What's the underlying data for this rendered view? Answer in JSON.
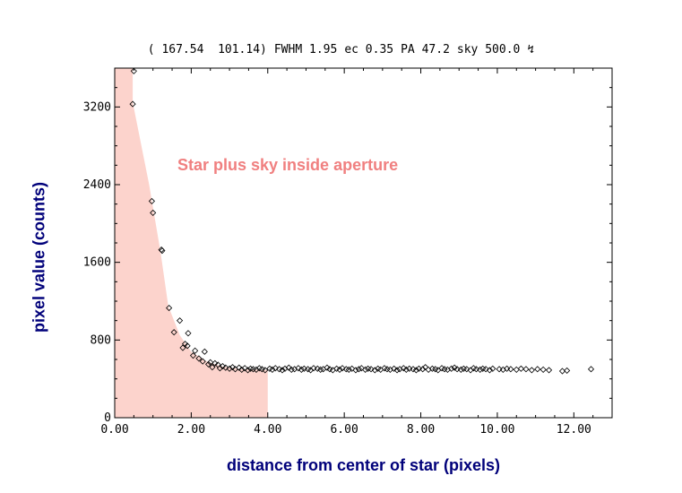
{
  "header": {
    "coords": "( 167.54  101.14)",
    "fwhm": "FWHM 1.95",
    "ec": "ec 0.35",
    "pa": "PA 47.2",
    "sky": "sky 500.0",
    "corner_glyph": "↯"
  },
  "chart_data": {
    "type": "scatter",
    "title": "",
    "xlabel": "distance from center of star (pixels)",
    "ylabel": "pixel value (counts)",
    "xlim": [
      0,
      13
    ],
    "ylim": [
      0,
      3600
    ],
    "xticks": [
      0,
      2,
      4,
      6,
      8,
      10,
      12
    ],
    "xtick_labels": [
      "0.00",
      "2.00",
      "4.00",
      "6.00",
      "8.00",
      "10.00",
      "12.00"
    ],
    "yticks": [
      0,
      800,
      1600,
      2400,
      3200
    ],
    "ytick_labels": [
      "0",
      "800",
      "1600",
      "2400",
      "3200"
    ],
    "annotation": "Star plus sky inside aperture",
    "aperture_radius": 4.0,
    "shaded_profile": [
      [
        0,
        3600
      ],
      [
        0.47,
        3600
      ],
      [
        0.47,
        3250
      ],
      [
        0.9,
        2400
      ],
      [
        1.2,
        1700
      ],
      [
        1.4,
        1150
      ],
      [
        1.7,
        850
      ],
      [
        2.0,
        680
      ],
      [
        2.4,
        580
      ],
      [
        2.8,
        530
      ],
      [
        3.3,
        500
      ],
      [
        4.0,
        490
      ]
    ],
    "colors": {
      "shade": "#fcd3cc",
      "marker": "#000000",
      "axis_label": "#00007a",
      "annotation": "#f08080"
    },
    "sky_level": 500,
    "points": [
      [
        0.5,
        3570
      ],
      [
        0.47,
        3230
      ],
      [
        0.97,
        2230
      ],
      [
        1.0,
        2110
      ],
      [
        1.22,
        1730
      ],
      [
        1.24,
        1720
      ],
      [
        1.42,
        1130
      ],
      [
        1.7,
        1000
      ],
      [
        1.55,
        880
      ],
      [
        1.92,
        870
      ],
      [
        1.84,
        760
      ],
      [
        1.78,
        720
      ],
      [
        1.9,
        740
      ],
      [
        2.1,
        690
      ],
      [
        2.05,
        640
      ],
      [
        2.2,
        610
      ],
      [
        2.35,
        680
      ],
      [
        2.3,
        580
      ],
      [
        2.45,
        550
      ],
      [
        2.5,
        570
      ],
      [
        2.55,
        520
      ],
      [
        2.62,
        560
      ],
      [
        2.7,
        545
      ],
      [
        2.75,
        510
      ],
      [
        2.82,
        530
      ],
      [
        2.9,
        515
      ],
      [
        3.0,
        505
      ],
      [
        3.08,
        520
      ],
      [
        3.15,
        500
      ],
      [
        3.25,
        515
      ],
      [
        3.32,
        495
      ],
      [
        3.4,
        510
      ],
      [
        3.48,
        490
      ],
      [
        3.55,
        505
      ],
      [
        3.62,
        500
      ],
      [
        3.7,
        495
      ],
      [
        3.78,
        510
      ],
      [
        3.85,
        500
      ],
      [
        3.93,
        490
      ],
      [
        4.05,
        505
      ],
      [
        4.12,
        495
      ],
      [
        4.2,
        510
      ],
      [
        4.3,
        500
      ],
      [
        4.38,
        490
      ],
      [
        4.45,
        505
      ],
      [
        4.55,
        515
      ],
      [
        4.62,
        495
      ],
      [
        4.7,
        500
      ],
      [
        4.8,
        510
      ],
      [
        4.88,
        495
      ],
      [
        4.95,
        505
      ],
      [
        5.05,
        500
      ],
      [
        5.12,
        490
      ],
      [
        5.2,
        510
      ],
      [
        5.3,
        505
      ],
      [
        5.38,
        495
      ],
      [
        5.45,
        500
      ],
      [
        5.55,
        515
      ],
      [
        5.62,
        500
      ],
      [
        5.7,
        490
      ],
      [
        5.8,
        505
      ],
      [
        5.88,
        495
      ],
      [
        5.95,
        510
      ],
      [
        6.05,
        500
      ],
      [
        6.12,
        495
      ],
      [
        6.2,
        505
      ],
      [
        6.3,
        490
      ],
      [
        6.38,
        500
      ],
      [
        6.45,
        510
      ],
      [
        6.55,
        495
      ],
      [
        6.62,
        505
      ],
      [
        6.7,
        500
      ],
      [
        6.8,
        490
      ],
      [
        6.88,
        505
      ],
      [
        6.95,
        495
      ],
      [
        7.05,
        510
      ],
      [
        7.12,
        500
      ],
      [
        7.2,
        495
      ],
      [
        7.3,
        505
      ],
      [
        7.38,
        490
      ],
      [
        7.45,
        500
      ],
      [
        7.55,
        510
      ],
      [
        7.62,
        495
      ],
      [
        7.7,
        505
      ],
      [
        7.8,
        500
      ],
      [
        7.88,
        490
      ],
      [
        7.95,
        505
      ],
      [
        8.05,
        500
      ],
      [
        8.12,
        520
      ],
      [
        8.2,
        495
      ],
      [
        8.3,
        505
      ],
      [
        8.38,
        500
      ],
      [
        8.45,
        490
      ],
      [
        8.55,
        510
      ],
      [
        8.62,
        500
      ],
      [
        8.7,
        495
      ],
      [
        8.8,
        505
      ],
      [
        8.88,
        515
      ],
      [
        8.95,
        500
      ],
      [
        9.05,
        495
      ],
      [
        9.12,
        505
      ],
      [
        9.2,
        500
      ],
      [
        9.3,
        490
      ],
      [
        9.38,
        510
      ],
      [
        9.45,
        500
      ],
      [
        9.55,
        495
      ],
      [
        9.62,
        505
      ],
      [
        9.7,
        500
      ],
      [
        9.8,
        490
      ],
      [
        9.88,
        505
      ],
      [
        10.05,
        500
      ],
      [
        10.15,
        495
      ],
      [
        10.25,
        505
      ],
      [
        10.35,
        500
      ],
      [
        10.5,
        495
      ],
      [
        10.62,
        505
      ],
      [
        10.75,
        500
      ],
      [
        10.9,
        490
      ],
      [
        11.05,
        500
      ],
      [
        11.2,
        495
      ],
      [
        11.35,
        490
      ],
      [
        11.7,
        480
      ],
      [
        11.82,
        485
      ],
      [
        12.45,
        500
      ]
    ]
  }
}
